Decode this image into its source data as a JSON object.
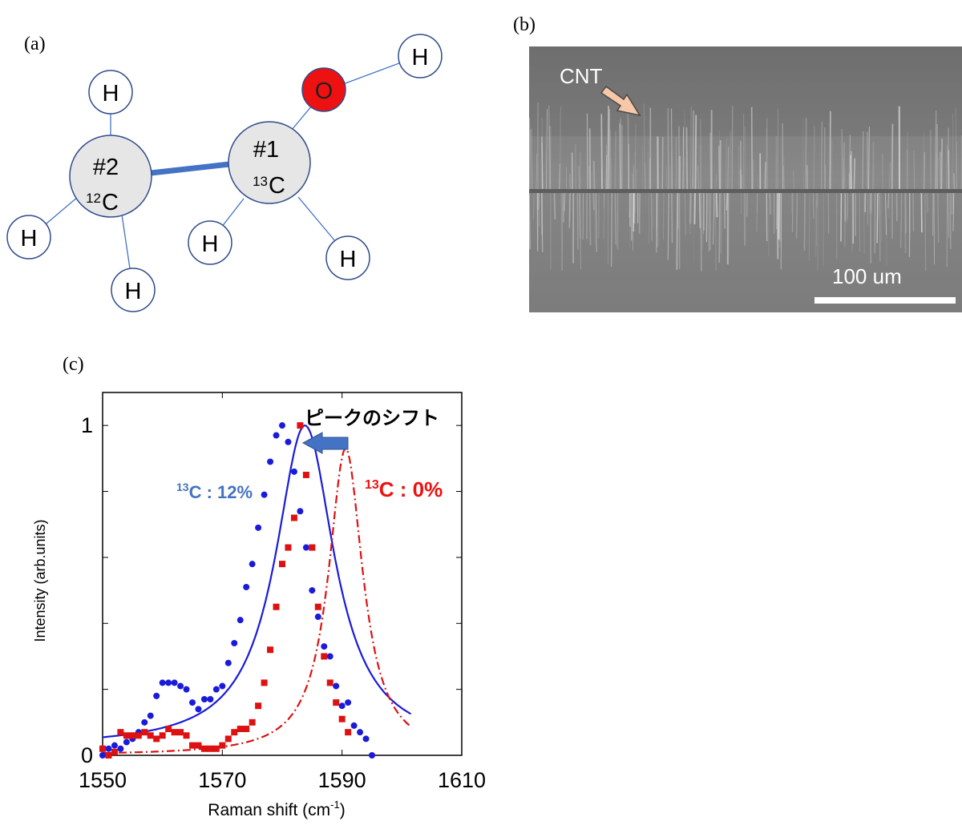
{
  "panels": {
    "a": "(a)",
    "b": "(b)",
    "c": "(c)"
  },
  "molecule": {
    "carbon2_number": "#2",
    "carbon2_mass": "12",
    "carbon2_symbol": "C",
    "carbon1_number": "#1",
    "carbon1_mass": "13",
    "carbon1_symbol": "C",
    "oxygen": "O",
    "hydrogen": "H",
    "colors": {
      "oxygen": "#ee1111",
      "carbon_fill": "#e6e6e6",
      "hydrogen_border": "#2f4b8a",
      "bond": "#4472c4"
    }
  },
  "sem": {
    "cnt_label": "CNT",
    "scale_label": "100 um"
  },
  "chart_data": {
    "type": "scatter",
    "xlabel_main": "Raman shift (cm",
    "xlabel_sup": "-1",
    "xlabel_end": ")",
    "ylabel": "Intensity (arb.units)",
    "xlim": [
      1550,
      1610
    ],
    "ylim": [
      0,
      1.1
    ],
    "x_ticks": [
      "1550",
      "1570",
      "1590",
      "1610"
    ],
    "y_ticks": [
      "0",
      "1"
    ],
    "annotation_shift": "ピークのシフト",
    "series": [
      {
        "label_sup": "13",
        "label_text": "C : 12%",
        "color": "#1a1adb",
        "marker": "circle",
        "points": [
          [
            1550,
            0.0
          ],
          [
            1551,
            0.02
          ],
          [
            1552,
            0.03
          ],
          [
            1553,
            0.02
          ],
          [
            1554,
            0.04
          ],
          [
            1555,
            0.05
          ],
          [
            1556,
            0.07
          ],
          [
            1557,
            0.1
          ],
          [
            1558,
            0.12
          ],
          [
            1559,
            0.18
          ],
          [
            1560,
            0.22
          ],
          [
            1561,
            0.22
          ],
          [
            1562,
            0.22
          ],
          [
            1563,
            0.21
          ],
          [
            1564,
            0.2
          ],
          [
            1565,
            0.16
          ],
          [
            1566,
            0.14
          ],
          [
            1567,
            0.17
          ],
          [
            1568,
            0.17
          ],
          [
            1569,
            0.2
          ],
          [
            1570,
            0.21
          ],
          [
            1571,
            0.28
          ],
          [
            1572,
            0.34
          ],
          [
            1573,
            0.41
          ],
          [
            1574,
            0.51
          ],
          [
            1575,
            0.58
          ],
          [
            1576,
            0.69
          ],
          [
            1577,
            0.79
          ],
          [
            1578,
            0.89
          ],
          [
            1579,
            0.97
          ],
          [
            1580,
            1.0
          ],
          [
            1581,
            0.95
          ],
          [
            1582,
            0.86
          ],
          [
            1583,
            0.74
          ],
          [
            1584,
            0.63
          ],
          [
            1585,
            0.5
          ],
          [
            1586,
            0.42
          ],
          [
            1587,
            0.33
          ],
          [
            1588,
            0.3
          ],
          [
            1589,
            0.21
          ],
          [
            1590,
            0.15
          ],
          [
            1591,
            0.16
          ],
          [
            1592,
            0.09
          ],
          [
            1593,
            0.07
          ],
          [
            1594,
            0.05
          ],
          [
            1595,
            0.0
          ]
        ],
        "fit": {
          "style": "solid",
          "center": 1583.8,
          "amplitude": 0.975,
          "hwhm": 6.0,
          "baseline": 0.025
        }
      },
      {
        "label_sup": "13",
        "label_text": "C : 0%",
        "color": "#dd1111",
        "marker": "square",
        "points": [
          [
            1550,
            0.02
          ],
          [
            1551,
            0.0
          ],
          [
            1552,
            0.01
          ],
          [
            1553,
            0.07
          ],
          [
            1554,
            0.06
          ],
          [
            1555,
            0.06
          ],
          [
            1556,
            0.06
          ],
          [
            1557,
            0.07
          ],
          [
            1558,
            0.06
          ],
          [
            1559,
            0.05
          ],
          [
            1560,
            0.06
          ],
          [
            1561,
            0.08
          ],
          [
            1562,
            0.07
          ],
          [
            1563,
            0.07
          ],
          [
            1564,
            0.06
          ],
          [
            1565,
            0.03
          ],
          [
            1566,
            0.03
          ],
          [
            1567,
            0.02
          ],
          [
            1568,
            0.02
          ],
          [
            1569,
            0.02
          ],
          [
            1570,
            0.03
          ],
          [
            1571,
            0.05
          ],
          [
            1572,
            0.07
          ],
          [
            1573,
            0.08
          ],
          [
            1574,
            0.08
          ],
          [
            1575,
            0.1
          ],
          [
            1576,
            0.15
          ],
          [
            1577,
            0.22
          ],
          [
            1578,
            0.32
          ],
          [
            1579,
            0.45
          ],
          [
            1580,
            0.58
          ],
          [
            1581,
            0.63
          ],
          [
            1582,
            0.72
          ],
          [
            1583,
            1.0
          ],
          [
            1584,
            0.85
          ],
          [
            1585,
            0.63
          ],
          [
            1586,
            0.45
          ],
          [
            1587,
            0.3
          ],
          [
            1588,
            0.22
          ],
          [
            1589,
            0.16
          ],
          [
            1590,
            0.11
          ],
          [
            1591,
            0.07
          ]
        ],
        "fit": {
          "style": "dashed",
          "center": 1590.6,
          "amplitude": 0.93,
          "hwhm": 3.5,
          "baseline": 0.0
        }
      }
    ]
  }
}
